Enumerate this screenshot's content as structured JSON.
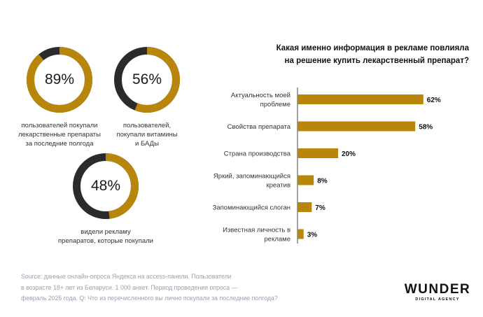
{
  "colors": {
    "accent": "#B8860B",
    "dark": "#2b2b2b",
    "text": "#1a1a1a",
    "source_text": "#9aa3b3"
  },
  "donuts": [
    {
      "value": 89,
      "label": "89%",
      "caption": [
        "пользователей покупали",
        "лекарственные препараты",
        "за последние полгода"
      ]
    },
    {
      "value": 56,
      "label": "56%",
      "caption": [
        "пользователей,",
        "покупали витамины",
        "и БАДы"
      ]
    },
    {
      "value": 48,
      "label": "48%",
      "caption": [
        "видели рекламу",
        "препаратов, которые покупали"
      ]
    }
  ],
  "chart_data": {
    "type": "bar",
    "orientation": "horizontal",
    "title": [
      "Какая именно информация в рекламе повлияла",
      "на решение купить лекарственный препарат?"
    ],
    "categories": [
      [
        "Актуальность моей",
        "проблеме"
      ],
      [
        "Свойства препарата"
      ],
      [
        "Страна производства"
      ],
      [
        "Яркий, запоминающийся",
        "креатив"
      ],
      [
        "Запоминающийся слоган"
      ],
      [
        "Известная личность в",
        "рекламе"
      ]
    ],
    "values": [
      62,
      58,
      20,
      8,
      7,
      3
    ],
    "value_labels": [
      "62%",
      "58%",
      "20%",
      "8%",
      "7%",
      "3%"
    ],
    "xlim": [
      0,
      100
    ],
    "grid": false,
    "axis_line": true
  },
  "source": [
    "Source: данные онлайн-опроса Яндекса на access-панели. Пользователи",
    "в возрасте 18+ лет из Беларуси. 1 000 анкет. Период проведения опроса —",
    "февраль 2025 года. Q: Что из перечисленного вы лично покупали за последние полгода?"
  ],
  "logo": {
    "main": "WUNDER",
    "sub": "DIGITAL AGENCY"
  }
}
